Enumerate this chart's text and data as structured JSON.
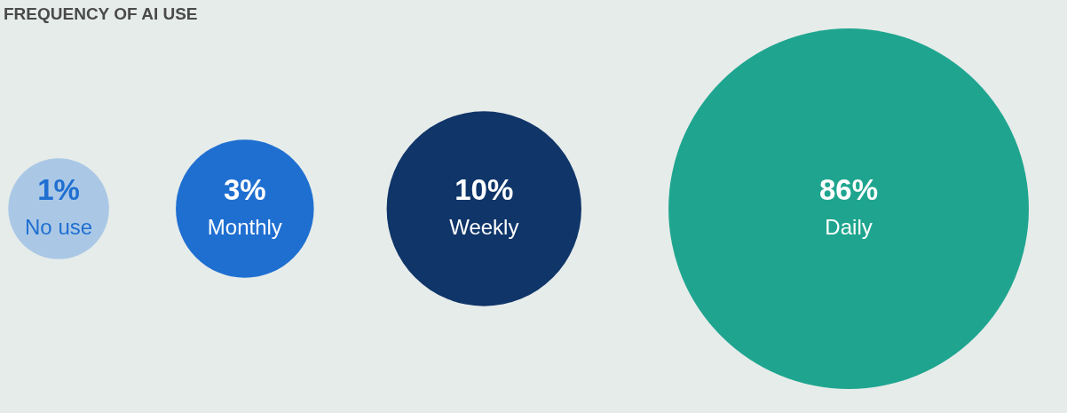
{
  "chart_data": {
    "type": "other",
    "title": "FREQUENCY OF AI USE",
    "categories": [
      "No use",
      "Monthly",
      "Weekly",
      "Daily"
    ],
    "values": [
      1,
      3,
      10,
      86
    ],
    "value_labels": [
      "1%",
      "3%",
      "10%",
      "86%"
    ],
    "colors": [
      "#aac8e6",
      "#1f6fd1",
      "#0f3569",
      "#1fa58f"
    ]
  }
}
